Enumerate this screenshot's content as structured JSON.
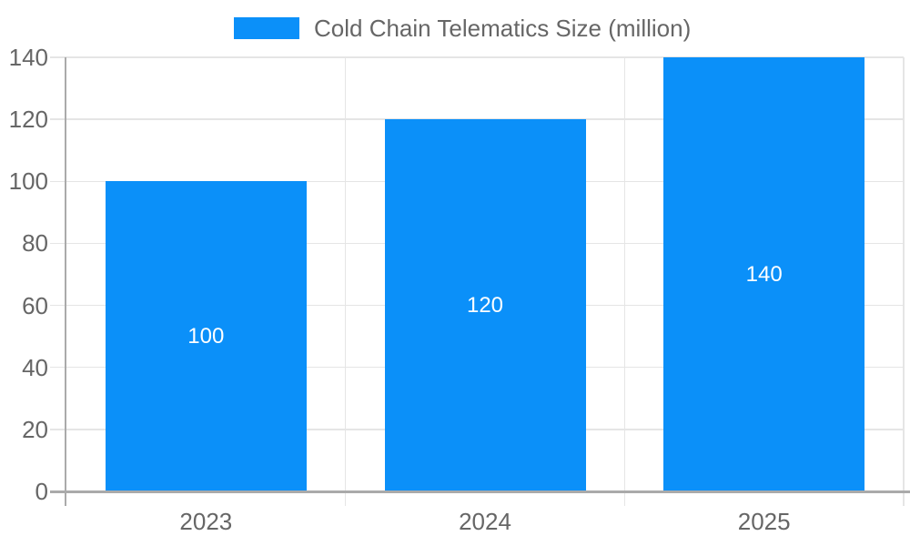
{
  "chart_data": {
    "type": "bar",
    "title": "",
    "series_name": "Cold Chain Telematics Size (million)",
    "categories": [
      "2023",
      "2024",
      "2025"
    ],
    "values": [
      100,
      120,
      140
    ],
    "data_labels_shown": true,
    "xlabel": "",
    "ylabel": "",
    "ylim": [
      0,
      140
    ],
    "yticks": [
      0,
      20,
      40,
      60,
      80,
      100,
      120,
      140
    ],
    "grid": true,
    "legend_position": "top-center"
  },
  "colors": {
    "bar": "#0b90f9",
    "axis": "#aaaaaa",
    "grid": "#e5e5e5",
    "axis_text": "#666666",
    "data_label": "#ffffff",
    "background": "#ffffff"
  }
}
